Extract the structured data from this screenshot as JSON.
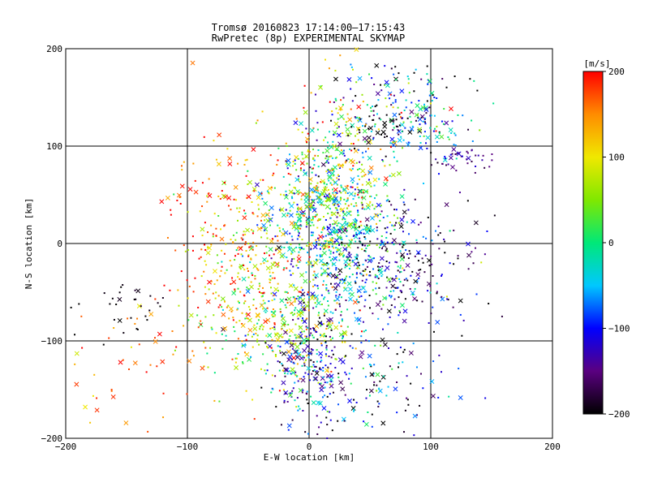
{
  "chart_data": {
    "type": "scatter",
    "title": "Tromsø 20160823 17:14:00–17:15:43",
    "subtitle": "RwPretec (8p) EXPERIMENTAL SKYMAP",
    "xlabel": "E-W location [km]",
    "ylabel": "N-S location [km]",
    "xlim": [
      -200,
      200
    ],
    "ylim": [
      -200,
      200
    ],
    "xticks": [
      -200,
      -100,
      0,
      100,
      200
    ],
    "yticks": [
      -200,
      -100,
      0,
      100,
      200
    ],
    "grid": true,
    "colorbar": {
      "label": "[m/s]",
      "range": [
        -200,
        200
      ],
      "ticks": [
        200,
        100,
        0,
        -100,
        -200
      ],
      "colors": [
        "#000000",
        "#5a0080",
        "#0000ff",
        "#00c8ff",
        "#00e878",
        "#80e800",
        "#f0e800",
        "#ff8c00",
        "#ff0000"
      ]
    },
    "marker_types": [
      "dot",
      "x"
    ],
    "clusters": [
      {
        "x": 15,
        "y": 60,
        "sx": 22,
        "sy": 40,
        "v": 40,
        "vs": 90,
        "n": 420
      },
      {
        "x": 10,
        "y": 10,
        "sx": 30,
        "sy": 35,
        "v": -10,
        "vs": 80,
        "n": 420
      },
      {
        "x": 50,
        "y": -25,
        "sx": 32,
        "sy": 35,
        "v": -90,
        "vs": 70,
        "n": 300
      },
      {
        "x": -20,
        "y": -85,
        "sx": 28,
        "sy": 28,
        "v": 60,
        "vs": 70,
        "n": 280
      },
      {
        "x": 0,
        "y": -120,
        "sx": 15,
        "sy": 30,
        "v": -120,
        "vs": 60,
        "n": 180
      },
      {
        "x": -50,
        "y": -30,
        "sx": 30,
        "sy": 45,
        "v": 90,
        "vs": 60,
        "n": 220
      },
      {
        "x": -75,
        "y": 25,
        "sx": 25,
        "sy": 45,
        "v": 170,
        "vs": 40,
        "n": 120
      },
      {
        "x": 70,
        "y": 145,
        "sx": 30,
        "sy": 25,
        "v": -40,
        "vs": 120,
        "n": 140
      },
      {
        "x": 95,
        "y": 120,
        "sx": 25,
        "sy": 15,
        "v": -50,
        "vs": 50,
        "n": 80
      },
      {
        "x": 60,
        "y": 120,
        "sx": 20,
        "sy": 10,
        "v": -200,
        "vs": 20,
        "n": 40
      },
      {
        "x": 125,
        "y": 88,
        "sx": 12,
        "sy": 8,
        "v": -150,
        "vs": 20,
        "n": 40
      },
      {
        "x": 85,
        "y": -15,
        "sx": 25,
        "sy": 35,
        "v": -170,
        "vs": 40,
        "n": 120
      },
      {
        "x": 45,
        "y": -145,
        "sx": 35,
        "sy": 30,
        "v": -100,
        "vs": 90,
        "n": 160
      },
      {
        "x": -145,
        "y": -115,
        "sx": 30,
        "sy": 40,
        "v": 160,
        "vs": 40,
        "n": 50
      },
      {
        "x": -150,
        "y": -70,
        "sx": 25,
        "sy": 20,
        "v": -195,
        "vs": 10,
        "n": 30
      }
    ]
  }
}
